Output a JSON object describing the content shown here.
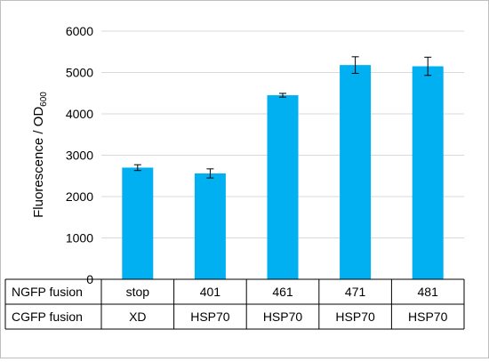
{
  "chart_data": {
    "type": "bar",
    "ylabel": "Fluorescence / OD",
    "ylabel_subscript": "600",
    "ylim": [
      0,
      6000
    ],
    "yticks": [
      0,
      1000,
      2000,
      3000,
      4000,
      5000,
      6000
    ],
    "grid": true,
    "bar_color": "#00b0f0",
    "categories": [
      "stop",
      "401",
      "461",
      "471",
      "481"
    ],
    "values": [
      2700,
      2560,
      4450,
      5180,
      5150
    ],
    "errors": [
      70,
      110,
      45,
      200,
      220
    ],
    "table_rows": [
      {
        "label": "NGFP fusion",
        "values": [
          "stop",
          "401",
          "461",
          "471",
          "481"
        ]
      },
      {
        "label": "CGFP fusion",
        "values": [
          "XD",
          "HSP70",
          "HSP70",
          "HSP70",
          "HSP70"
        ]
      }
    ]
  }
}
